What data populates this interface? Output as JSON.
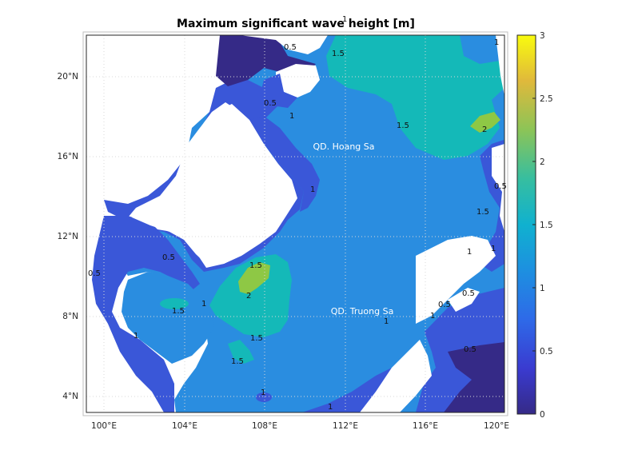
{
  "title": "Maximum significant wave height [m]",
  "map": {
    "lat_ticks": [
      "20°N",
      "16°N",
      "12°N",
      "8°N",
      "4°N"
    ],
    "lon_ticks": [
      "100°E",
      "104°E",
      "108°E",
      "112°E",
      "116°E",
      "120°E"
    ],
    "place_labels": {
      "paracel": "QD. Hoang Sa",
      "spratly": "QD. Truong Sa"
    },
    "contour_labels": {
      "c05": "0.5",
      "c1": "1",
      "c15": "1.5",
      "c2": "2"
    }
  },
  "colorbar": {
    "ticks": [
      "3",
      "2.5",
      "2",
      "1.5",
      "1",
      "0.5",
      "0"
    ],
    "min": 0,
    "max": 3,
    "colormap": "parula"
  },
  "colors": {
    "land": "#ffffff",
    "level_0_05": "#352a87",
    "level_05_1": "#3a57d8",
    "level_1_15": "#2a8de0",
    "level_15_2": "#14b9b8",
    "level_2_25": "#8ec845"
  }
}
